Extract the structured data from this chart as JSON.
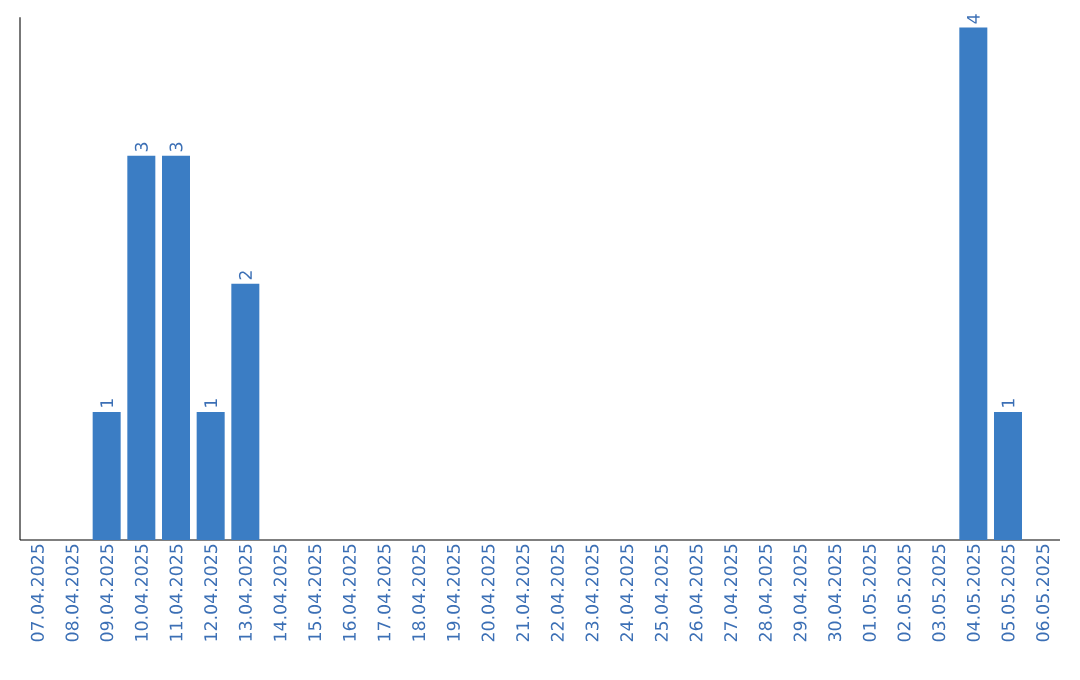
{
  "chart_data": {
    "type": "bar",
    "categories": [
      "07.04.2025",
      "08.04.2025",
      "09.04.2025",
      "10.04.2025",
      "11.04.2025",
      "12.04.2025",
      "13.04.2025",
      "14.04.2025",
      "15.04.2025",
      "16.04.2025",
      "17.04.2025",
      "18.04.2025",
      "19.04.2025",
      "20.04.2025",
      "21.04.2025",
      "22.04.2025",
      "23.04.2025",
      "24.04.2025",
      "25.04.2025",
      "26.04.2025",
      "27.04.2025",
      "28.04.2025",
      "29.04.2025",
      "30.04.2025",
      "01.05.2025",
      "02.05.2025",
      "03.05.2025",
      "04.05.2025",
      "05.05.2025",
      "06.05.2025"
    ],
    "values": [
      0,
      0,
      1,
      3,
      3,
      1,
      2,
      0,
      0,
      0,
      0,
      0,
      0,
      0,
      0,
      0,
      0,
      0,
      0,
      0,
      0,
      0,
      0,
      0,
      0,
      0,
      0,
      4,
      1,
      0
    ],
    "value_labels": [
      null,
      null,
      "1",
      "3",
      "3",
      "1",
      "2",
      null,
      null,
      null,
      null,
      null,
      null,
      null,
      null,
      null,
      null,
      null,
      null,
      null,
      null,
      null,
      null,
      null,
      null,
      null,
      null,
      "4",
      "1",
      null
    ],
    "color": "#3b7dc4",
    "tick_labels": "x"
  }
}
